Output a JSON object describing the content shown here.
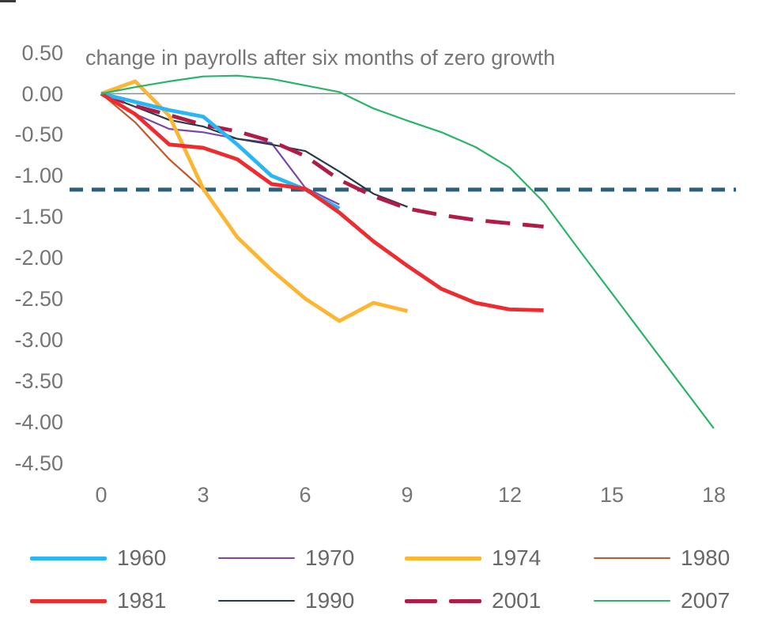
{
  "chart_data": {
    "type": "line",
    "title": "change in payrolls after six months of zero growth",
    "x_tick_labels": [
      "0",
      "3",
      "6",
      "9",
      "12",
      "15",
      "18"
    ],
    "y_tick_labels": [
      "0.50",
      "0.00",
      "-0.50",
      "-1.00",
      "-1.50",
      "-2.00",
      "-2.50",
      "-3.00",
      "-3.50",
      "-4.00",
      "-4.50"
    ],
    "x_start": 0,
    "x_step": 1,
    "xlim": [
      0,
      18.6
    ],
    "ylim": [
      0.5,
      -4.5
    ],
    "grid": "off",
    "legend_position": "bottom",
    "axis_text_color": "#757575",
    "legend_text_color": "#686868",
    "reference_lines": [
      {
        "name": "zero-line",
        "value": 0.0,
        "style": "solid",
        "color": "#8a8a8a",
        "width": 1.5
      },
      {
        "name": "threshold-line",
        "value": -1.17,
        "style": "dashed",
        "color": "#2a607c",
        "width": 5
      }
    ],
    "series": [
      {
        "name": "1960",
        "color": "#29b6f6",
        "thickness": "thick",
        "dashed": false,
        "values": [
          0,
          -0.1,
          -0.2,
          -0.28,
          -0.62,
          -1.0,
          -1.17,
          -1.4
        ]
      },
      {
        "name": "1970",
        "color": "#7e45a8",
        "thickness": "thin",
        "dashed": false,
        "values": [
          0,
          -0.25,
          -0.43,
          -0.47,
          -0.55,
          -0.6,
          -1.15,
          -1.35
        ]
      },
      {
        "name": "1974",
        "color": "#fcb632",
        "thickness": "thick",
        "dashed": false,
        "values": [
          0,
          0.15,
          -0.27,
          -1.16,
          -1.75,
          -2.15,
          -2.5,
          -2.77,
          -2.55,
          -2.65
        ]
      },
      {
        "name": "1980",
        "color": "#c05a28",
        "thickness": "thin",
        "dashed": false,
        "values": [
          0,
          -0.35,
          -0.8,
          -1.17
        ]
      },
      {
        "name": "1981",
        "color": "#ee2b2e",
        "thickness": "thick",
        "dashed": false,
        "values": [
          0,
          -0.25,
          -0.62,
          -0.66,
          -0.8,
          -1.1,
          -1.16,
          -1.45,
          -1.8,
          -2.1,
          -2.38,
          -2.55,
          -2.63,
          -2.64
        ]
      },
      {
        "name": "1990",
        "color": "#2c3a47",
        "thickness": "thin",
        "dashed": false,
        "values": [
          0,
          -0.16,
          -0.32,
          -0.4,
          -0.55,
          -0.62,
          -0.7,
          -0.95,
          -1.22,
          -1.38
        ]
      },
      {
        "name": "2001",
        "color": "#b01c45",
        "thickness": "thick",
        "dashed": true,
        "values": [
          0,
          -0.15,
          -0.26,
          -0.38,
          -0.46,
          -0.58,
          -0.76,
          -1.05,
          -1.25,
          -1.4,
          -1.48,
          -1.54,
          -1.58,
          -1.62
        ]
      },
      {
        "name": "2007",
        "color": "#27b567",
        "thickness": "thin",
        "dashed": false,
        "values": [
          0,
          0.08,
          0.15,
          0.21,
          0.22,
          0.18,
          0.1,
          0.02,
          -0.18,
          -0.33,
          -0.47,
          -0.65,
          -0.9,
          -1.32,
          -1.88,
          -2.43,
          -2.98,
          -3.53,
          -4.08
        ]
      }
    ],
    "legend_rows": [
      [
        "1960",
        "1970",
        "1974",
        "1980"
      ],
      [
        "1981",
        "1990",
        "2001",
        "2007"
      ]
    ]
  }
}
